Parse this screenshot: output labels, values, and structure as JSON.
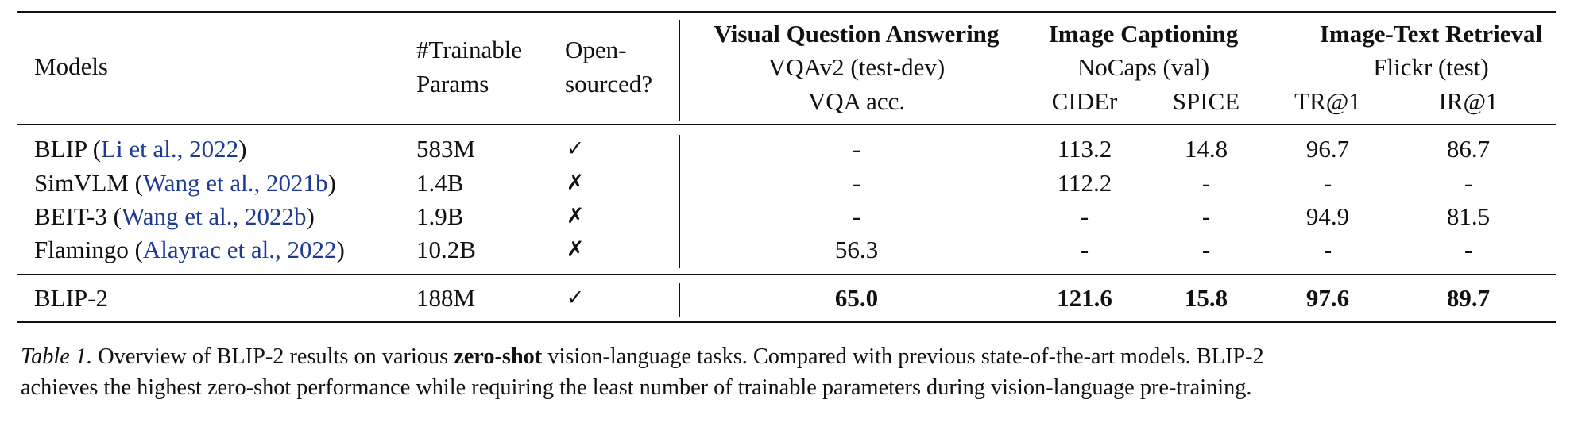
{
  "header": {
    "models": "Models",
    "trainable_params": [
      "#Trainable",
      "Params"
    ],
    "open_sourced": [
      "Open-",
      "sourced?"
    ],
    "groups": [
      {
        "title": "Visual Question Answering",
        "dataset": "VQAv2 (test-dev)"
      },
      {
        "title": "Image Captioning",
        "dataset": "NoCaps (val)"
      },
      {
        "title": "Image-Text Retrieval",
        "dataset": "Flickr (test)"
      }
    ],
    "metrics": [
      "VQA acc.",
      "CIDEr",
      "SPICE",
      "TR@1",
      "IR@1"
    ]
  },
  "rows": [
    {
      "model": "BLIP",
      "cite_author": "Li et al.",
      "cite_year": "2022",
      "params": "583M",
      "open": "✓",
      "values": [
        "-",
        "113.2",
        "14.8",
        "96.7",
        "86.7"
      ]
    },
    {
      "model": "SimVLM",
      "cite_author": "Wang et al.",
      "cite_year": "2021b",
      "params": "1.4B",
      "open": "✗",
      "values": [
        "-",
        "112.2",
        "-",
        "-",
        "-"
      ]
    },
    {
      "model": "BEIT-3",
      "cite_author": "Wang et al.",
      "cite_year": "2022b",
      "params": "1.9B",
      "open": "✗",
      "values": [
        "-",
        "-",
        "-",
        "94.9",
        "81.5"
      ]
    },
    {
      "model": "Flamingo",
      "cite_author": "Alayrac et al.",
      "cite_year": "2022",
      "params": "10.2B",
      "open": "✗",
      "values": [
        "56.3",
        "-",
        "-",
        "-",
        "-"
      ]
    }
  ],
  "ours": {
    "model": "BLIP-2",
    "params": "188M",
    "open": "✓",
    "values": [
      "65.0",
      "121.6",
      "15.8",
      "97.6",
      "89.7"
    ]
  },
  "caption": {
    "label": "Table 1.",
    "text1": " Overview of BLIP-2 results on various ",
    "bold": "zero-shot",
    "text2": " vision-language tasks. Compared with previous state-of-the-art models. BLIP-2",
    "line2": "achieves the highest zero-shot performance while requiring the least number of trainable parameters during vision-language pre-training."
  }
}
